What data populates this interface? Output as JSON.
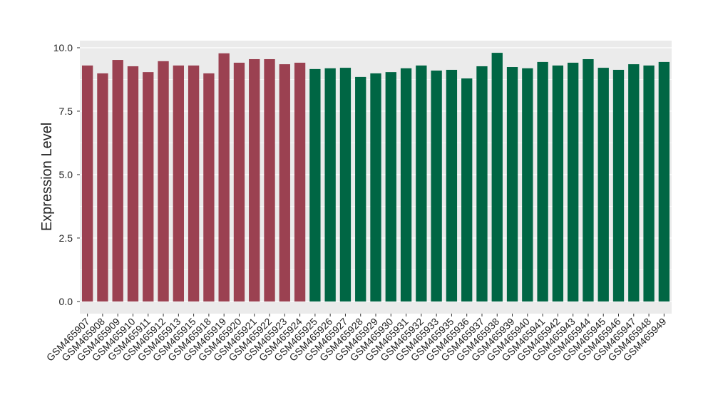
{
  "chart_data": {
    "type": "bar",
    "y_label": "Expression Level",
    "categories": [
      "GSM465907",
      "GSM465908",
      "GSM465909",
      "GSM465910",
      "GSM465911",
      "GSM465912",
      "GSM465913",
      "GSM465915",
      "GSM465918",
      "GSM465919",
      "GSM465920",
      "GSM465921",
      "GSM465922",
      "GSM465923",
      "GSM465924",
      "GSM465925",
      "GSM465926",
      "GSM465927",
      "GSM465928",
      "GSM465929",
      "GSM465930",
      "GSM465931",
      "GSM465932",
      "GSM465933",
      "GSM465935",
      "GSM465936",
      "GSM465937",
      "GSM465938",
      "GSM465939",
      "GSM465940",
      "GSM465941",
      "GSM465942",
      "GSM465943",
      "GSM465944",
      "GSM465945",
      "GSM465946",
      "GSM465947",
      "GSM465948",
      "GSM465949"
    ],
    "values": [
      9.3,
      8.99,
      9.52,
      9.27,
      9.04,
      9.47,
      9.3,
      9.3,
      8.99,
      9.78,
      9.41,
      9.55,
      9.55,
      9.35,
      9.41,
      9.16,
      9.19,
      9.21,
      8.85,
      8.99,
      9.04,
      9.19,
      9.3,
      9.1,
      9.13,
      8.79,
      9.27,
      9.8,
      9.24,
      9.19,
      9.44,
      9.3,
      9.41,
      9.55,
      9.21,
      9.13,
      9.35,
      9.3,
      9.44
    ],
    "colors": [
      "#9b4151",
      "#9b4151",
      "#9b4151",
      "#9b4151",
      "#9b4151",
      "#9b4151",
      "#9b4151",
      "#9b4151",
      "#9b4151",
      "#9b4151",
      "#9b4151",
      "#9b4151",
      "#9b4151",
      "#9b4151",
      "#9b4151",
      "#006644",
      "#006644",
      "#006644",
      "#006644",
      "#006644",
      "#006644",
      "#006644",
      "#006644",
      "#006644",
      "#006644",
      "#006644",
      "#006644",
      "#006644",
      "#006644",
      "#006644",
      "#006644",
      "#006644",
      "#006644",
      "#006644",
      "#006644",
      "#006644",
      "#006644",
      "#006644",
      "#006644"
    ],
    "ylim": [
      -0.48,
      10.28
    ],
    "yticks": [
      {
        "value": 0,
        "label": "0.0"
      },
      2.5,
      {
        "value": 5,
        "label": "5.0"
      },
      7.5,
      {
        "value": 10,
        "label": "10.0"
      }
    ],
    "grid": true
  }
}
